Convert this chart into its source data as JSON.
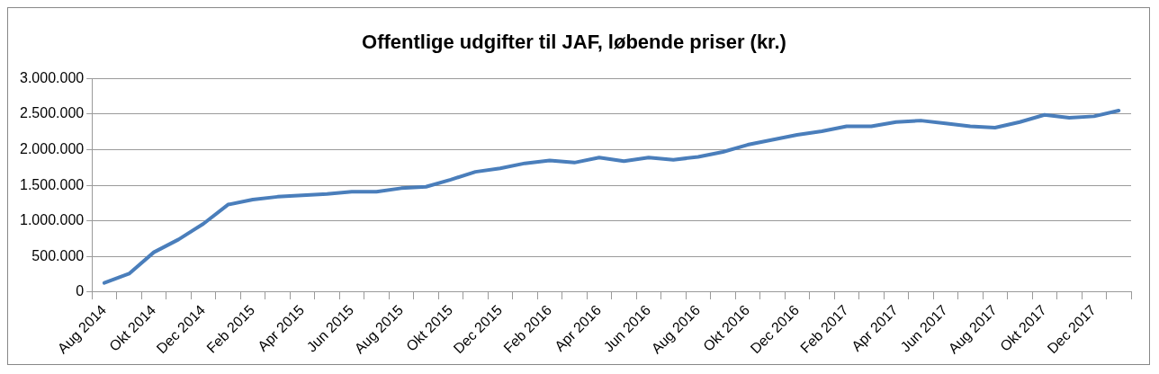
{
  "chart_data": {
    "type": "line",
    "title": "Offentlige udgifter til JAF, løbende priser (kr.)",
    "categories": [
      "Aug 2014",
      null,
      "Okt 2014",
      null,
      "Dec 2014",
      null,
      "Feb 2015",
      null,
      "Apr 2015",
      null,
      "Jun 2015",
      null,
      "Aug 2015",
      null,
      "Okt 2015",
      null,
      "Dec 2015",
      null,
      "Feb 2016",
      null,
      "Apr 2016",
      null,
      "Jun 2016",
      null,
      "Aug 2016",
      null,
      "Okt 2016",
      null,
      "Dec 2016",
      null,
      "Feb 2017",
      null,
      "Apr 2017",
      null,
      "Jun 2017",
      null,
      "Aug 2017",
      null,
      "Okt 2017",
      null,
      "Dec 2017",
      null
    ],
    "series": [
      {
        "color": "#4a7ebb",
        "values": [
          130000,
          260000,
          560000,
          740000,
          960000,
          1230000,
          1300000,
          1340000,
          1360000,
          1380000,
          1410000,
          1410000,
          1460000,
          1480000,
          1580000,
          1690000,
          1740000,
          1810000,
          1850000,
          1820000,
          1890000,
          1840000,
          1890000,
          1860000,
          1900000,
          1970000,
          2070000,
          2140000,
          2210000,
          2260000,
          2330000,
          2330000,
          2390000,
          2410000,
          2370000,
          2330000,
          2310000,
          2390000,
          2490000,
          2450000,
          2470000,
          2550000
        ]
      }
    ],
    "ylim": [
      0,
      3000000
    ],
    "yticks": [
      0,
      {
        "value": 500000,
        "label": "500.000"
      },
      {
        "value": 1000000,
        "label": "1.000.000"
      },
      {
        "value": 1500000,
        "label": "1.500.000"
      },
      {
        "value": 2000000,
        "label": "2.000.000"
      },
      {
        "value": 2500000,
        "label": "2.500.000"
      },
      {
        "value": 3000000,
        "label": "3.000.000"
      }
    ],
    "grid": "y",
    "legend": false,
    "marker": "none",
    "line_style": "solid"
  }
}
